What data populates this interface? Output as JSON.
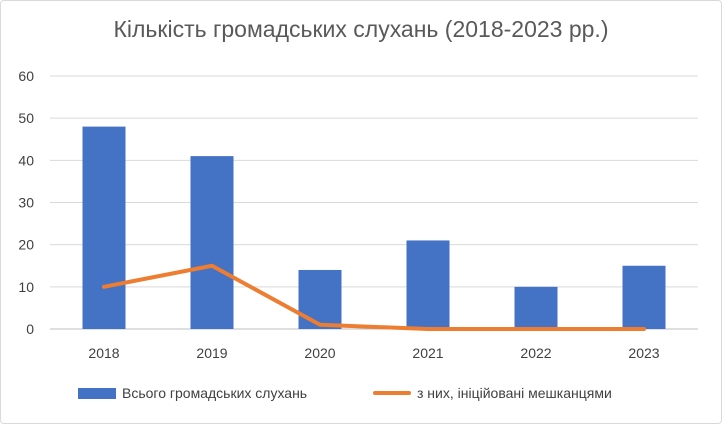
{
  "chart_data": {
    "type": "bar",
    "title": "Кількість громадських слухань (2018-2023 рр.)",
    "categories": [
      "2018",
      "2019",
      "2020",
      "2021",
      "2022",
      "2023"
    ],
    "series": [
      {
        "name": "Всього громадських слухань",
        "type": "bar",
        "color": "#4472C4",
        "values": [
          48,
          41,
          14,
          21,
          10,
          15
        ]
      },
      {
        "name": "з них, ініційовані мешканцями",
        "type": "line",
        "color": "#ED7D31",
        "values": [
          10,
          15,
          1,
          0,
          0,
          0
        ]
      }
    ],
    "ylim": [
      0,
      60
    ],
    "yticks": [
      0,
      10,
      20,
      30,
      40,
      50,
      60
    ],
    "grid": true,
    "legend_position": "bottom"
  }
}
